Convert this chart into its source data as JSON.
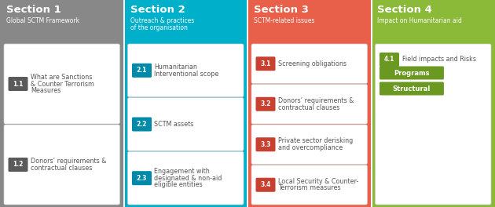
{
  "sections": [
    {
      "title": "Section 1",
      "subtitle": "Global SCTM Framework",
      "bg_color": "#888888",
      "badge_color": "#5a5a5a",
      "items": [
        {
          "badge": "1.1",
          "text": "What are Sanctions\n& Counter Terrorism\nMeasures"
        },
        {
          "badge": "1.2",
          "text": "Donors’ requirements &\ncontractual clauses"
        }
      ],
      "extra_items": []
    },
    {
      "title": "Section 2",
      "subtitle": "Outreach & practices\nof the organisation",
      "bg_color": "#00afc9",
      "badge_color": "#008aaa",
      "items": [
        {
          "badge": "2.1",
          "text": "Humanitarian\nInterventional scope"
        },
        {
          "badge": "2.2",
          "text": "SCTM assets"
        },
        {
          "badge": "2.3",
          "text": "Engagement with\ndesignated & non-aid\neligible entities"
        }
      ],
      "extra_items": []
    },
    {
      "title": "Section 3",
      "subtitle": "SCTM-related issues",
      "bg_color": "#e8604a",
      "badge_color": "#c84030",
      "items": [
        {
          "badge": "3.1",
          "text": "Screening obligations"
        },
        {
          "badge": "3.2",
          "text": "Donors’ requirements &\ncontractual clauses"
        },
        {
          "badge": "3.3",
          "text": "Private sector derisking\nand overcompliance"
        },
        {
          "badge": "3.4",
          "text": "Local Security & Counter-\nTerrorism measures"
        }
      ],
      "extra_items": []
    },
    {
      "title": "Section 4",
      "subtitle": "Impact on Humanitarian aid",
      "bg_color": "#8aba38",
      "badge_color": "#6a9820",
      "items": [
        {
          "badge": "4.1",
          "text": "Field impacts and Risks"
        }
      ],
      "extra_items": [
        "Programs",
        "Structural"
      ]
    }
  ],
  "text_color_dark": "#555555",
  "card_bg": "#ffffff",
  "figwidth": 6.3,
  "figheight": 2.64,
  "dpi": 100
}
